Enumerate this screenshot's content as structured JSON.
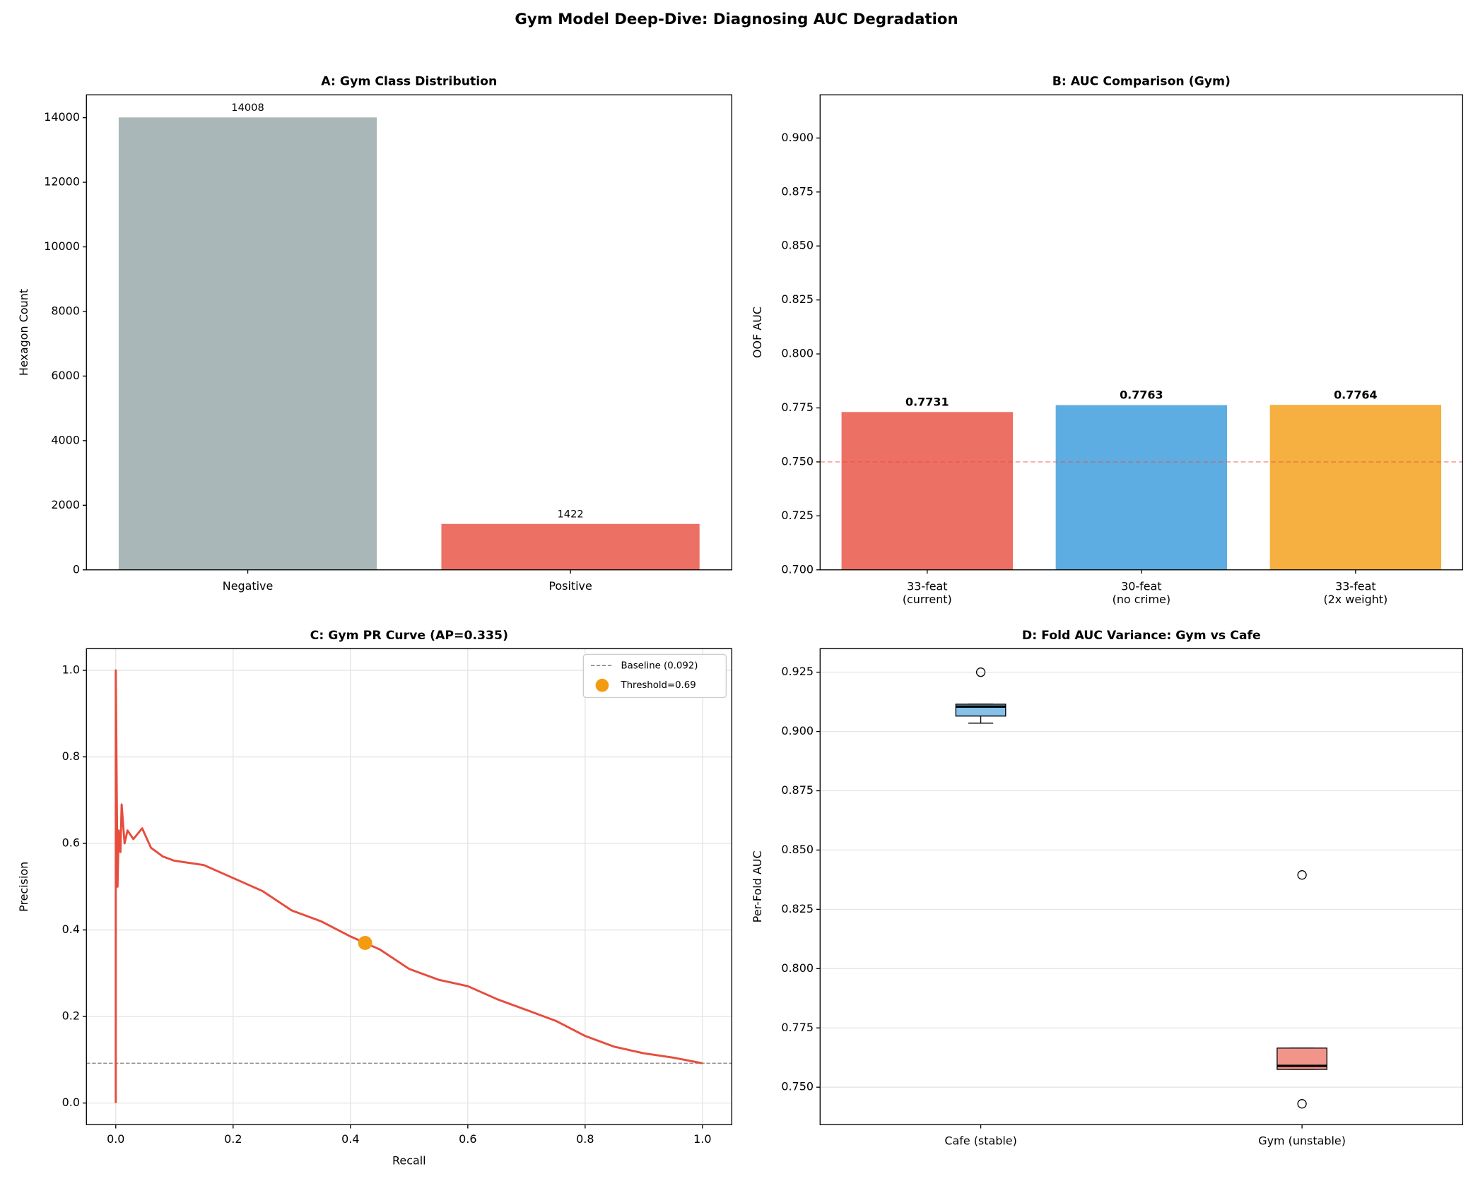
{
  "title": "Gym Model Deep-Dive: Diagnosing AUC Degradation",
  "chart_data": [
    {
      "type": "bar",
      "title": "A: Gym Class Distribution",
      "ylabel": "Hexagon Count",
      "categories": [
        "Negative",
        "Positive"
      ],
      "values": [
        14008,
        1422
      ],
      "colors": [
        "#aab7b8",
        "#ec7063"
      ],
      "ylim": [
        0,
        14708
      ],
      "yticks": [
        0,
        2000,
        4000,
        6000,
        8000,
        10000,
        12000,
        14000
      ],
      "grid": false,
      "bold_labels": false
    },
    {
      "type": "bar",
      "title": "B: AUC Comparison (Gym)",
      "ylabel": "OOF AUC",
      "categories": [
        "33-feat\n(current)",
        "30-feat\n(no crime)",
        "33-feat\n(2x weight)"
      ],
      "values": [
        0.7731,
        0.7763,
        0.7764
      ],
      "colors": [
        "#ec7063",
        "#5dade2",
        "#f5b041"
      ],
      "ylim": [
        0.7,
        0.92
      ],
      "yticks": [
        {
          "value": 0.7,
          "label": "0.700"
        },
        {
          "value": 0.725,
          "label": "0.725"
        },
        {
          "value": 0.75,
          "label": "0.750"
        },
        {
          "value": 0.775,
          "label": "0.775"
        },
        {
          "value": 0.8,
          "label": "0.800"
        },
        {
          "value": 0.825,
          "label": "0.825"
        },
        {
          "value": 0.85,
          "label": "0.850"
        },
        {
          "value": 0.875,
          "label": "0.875"
        },
        {
          "value": 0.9,
          "label": "0.900"
        }
      ],
      "ref_line": {
        "value": 0.75,
        "color": "#e74c3c"
      },
      "grid": false,
      "bold_labels": true
    },
    {
      "type": "line",
      "title": "C: Gym PR Curve (AP=0.335)",
      "xlabel": "Recall",
      "ylabel": "Precision",
      "x": [
        0,
        0,
        0.003,
        0.005,
        0.008,
        0.01,
        0.015,
        0.02,
        0.03,
        0.045,
        0.06,
        0.08,
        0.1,
        0.15,
        0.2,
        0.25,
        0.3,
        0.35,
        0.4,
        0.425,
        0.45,
        0.5,
        0.55,
        0.6,
        0.65,
        0.7,
        0.75,
        0.8,
        0.85,
        0.9,
        0.95,
        1.0
      ],
      "values": [
        0,
        1,
        0.5,
        0.63,
        0.58,
        0.69,
        0.6,
        0.63,
        0.61,
        0.635,
        0.59,
        0.57,
        0.56,
        0.55,
        0.52,
        0.49,
        0.445,
        0.42,
        0.385,
        0.37,
        0.355,
        0.31,
        0.285,
        0.27,
        0.24,
        0.215,
        0.19,
        0.155,
        0.13,
        0.115,
        0.105,
        0.092
      ],
      "color": "#e74c3c",
      "hline": {
        "value": 0.092,
        "label": "Baseline (0.092)",
        "color": "#808080"
      },
      "marker": {
        "x": 0.425,
        "y": 0.37,
        "label": "Threshold=0.69",
        "color": "#f39c12"
      },
      "xlim": [
        -0.05,
        1.05
      ],
      "ylim": [
        -0.05,
        1.05
      ],
      "xticks": [
        {
          "value": 0,
          "label": "0.0"
        },
        {
          "value": 0.2,
          "label": "0.2"
        },
        {
          "value": 0.4,
          "label": "0.4"
        },
        {
          "value": 0.6,
          "label": "0.6"
        },
        {
          "value": 0.8,
          "label": "0.8"
        },
        {
          "value": 1,
          "label": "1.0"
        }
      ],
      "yticks": [
        {
          "value": 0,
          "label": "0.0"
        },
        {
          "value": 0.2,
          "label": "0.2"
        },
        {
          "value": 0.4,
          "label": "0.4"
        },
        {
          "value": 0.6,
          "label": "0.6"
        },
        {
          "value": 0.8,
          "label": "0.8"
        },
        {
          "value": 1,
          "label": "1.0"
        }
      ],
      "grid": "both",
      "legend": "upper right"
    },
    {
      "type": "box",
      "title": "D: Fold AUC Variance: Gym vs Cafe",
      "ylabel": "Per-Fold AUC",
      "categories": [
        "Cafe (stable)",
        "Gym (unstable)"
      ],
      "boxes": [
        {
          "low": 0.9035,
          "q1": 0.9065,
          "median": 0.9105,
          "q3": 0.9115,
          "high": 0.9115,
          "outliers": [
            0.925
          ]
        },
        {
          "low": 0.7575,
          "q1": 0.7575,
          "median": 0.759,
          "q3": 0.7665,
          "high": 0.7665,
          "outliers": [
            0.8395,
            0.743
          ]
        }
      ],
      "colors": [
        "#85c1e9",
        "#f1948a"
      ],
      "ylim": [
        0.7342,
        0.9349
      ],
      "yticks": [
        {
          "value": 0.75,
          "label": "0.750"
        },
        {
          "value": 0.775,
          "label": "0.775"
        },
        {
          "value": 0.8,
          "label": "0.800"
        },
        {
          "value": 0.825,
          "label": "0.825"
        },
        {
          "value": 0.85,
          "label": "0.850"
        },
        {
          "value": 0.875,
          "label": "0.875"
        },
        {
          "value": 0.9,
          "label": "0.900"
        },
        {
          "value": 0.925,
          "label": "0.925"
        }
      ],
      "grid": "y"
    }
  ]
}
